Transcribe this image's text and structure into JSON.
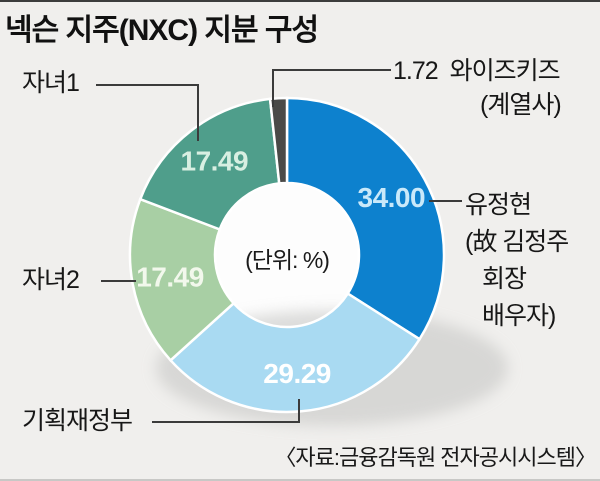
{
  "title": "넥슨 지주(NXC) 지분 구성",
  "center_note": "(단위: %)",
  "source": "〈자료:금융감독원 전자공시시스템〉",
  "colors": {
    "background": "#f0efed",
    "rule_top": "#3c3c3c",
    "rule_bottom": "#c8c8c6",
    "callout_line": "#3b3b3b",
    "shadow": "#cbcbc9"
  },
  "chart_data": {
    "type": "pie",
    "subtype": "donut",
    "title": "넥슨 지주(NXC) 지분 구성",
    "unit": "%",
    "direction": "clockwise",
    "start_angle_deg": 0,
    "slices": [
      {
        "label": "유정현 (故 김정주 회장 배우자)",
        "value": 34.0,
        "display_value": "34.00",
        "color": "#0d81ce",
        "value_color": "#c9e9fa"
      },
      {
        "label": "기획재정부",
        "value": 29.29,
        "display_value": "29.29",
        "color": "#a9daf2",
        "value_color": "#ffffff"
      },
      {
        "label": "자녀2",
        "value": 17.49,
        "display_value": "17.49",
        "color": "#a8cfa4",
        "value_color": "#f2f8ec"
      },
      {
        "label": "자녀1",
        "value": 17.49,
        "display_value": "17.49",
        "color": "#4f9e8b",
        "value_color": "#d8efe2"
      },
      {
        "label": "와이즈키즈 (계열사)",
        "value": 1.72,
        "display_value": "1.72",
        "color": "#4a4a48",
        "value_color": null
      }
    ]
  },
  "callouts": {
    "child1": {
      "label": "자녀1"
    },
    "child2": {
      "label": "자녀2"
    },
    "moef": {
      "label": "기획재정부"
    },
    "wisekids": {
      "value": "1.72",
      "name": "와이즈키즈",
      "sub": "(계열사)"
    },
    "spouse": {
      "lines": [
        "유정현",
        "(故 김정주",
        "회장",
        "배우자)"
      ]
    }
  }
}
